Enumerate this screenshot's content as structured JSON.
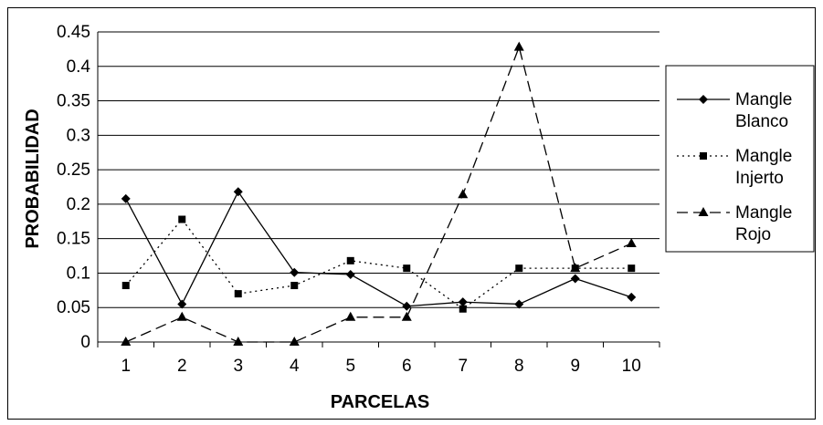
{
  "chart_data": {
    "type": "line",
    "xlabel": "PARCELAS",
    "ylabel": "PROBABILIDAD",
    "categories": [
      "1",
      "2",
      "3",
      "4",
      "5",
      "6",
      "7",
      "8",
      "9",
      "10"
    ],
    "ylim": [
      0,
      0.45
    ],
    "yticks": [
      "0",
      "0.05",
      "0.1",
      "0.15",
      "0.2",
      "0.25",
      "0.3",
      "0.35",
      "0.4",
      "0.45"
    ],
    "grid": "horizontal",
    "legend_position": "right",
    "series": [
      {
        "name_line1": "Mangle",
        "name_line2": "Blanco",
        "name": "Mangle Blanco",
        "marker": "diamond",
        "dash": "solid",
        "color": "#000000",
        "values": [
          0.208,
          0.055,
          0.218,
          0.101,
          0.098,
          0.052,
          0.058,
          0.055,
          0.092,
          0.065
        ]
      },
      {
        "name_line1": "Mangle",
        "name_line2": "Injerto",
        "name": "Mangle Injerto",
        "marker": "square",
        "dash": "dotted",
        "color": "#000000",
        "values": [
          0.082,
          0.178,
          0.07,
          0.082,
          0.118,
          0.107,
          0.048,
          0.107,
          0.107,
          0.107
        ]
      },
      {
        "name_line1": "Mangle",
        "name_line2": "Rojo",
        "name": "Mangle Rojo",
        "marker": "triangle",
        "dash": "dashed",
        "color": "#000000",
        "values": [
          0.0,
          0.036,
          0.0,
          0.0,
          0.036,
          0.036,
          0.214,
          0.428,
          0.107,
          0.143
        ]
      }
    ]
  }
}
